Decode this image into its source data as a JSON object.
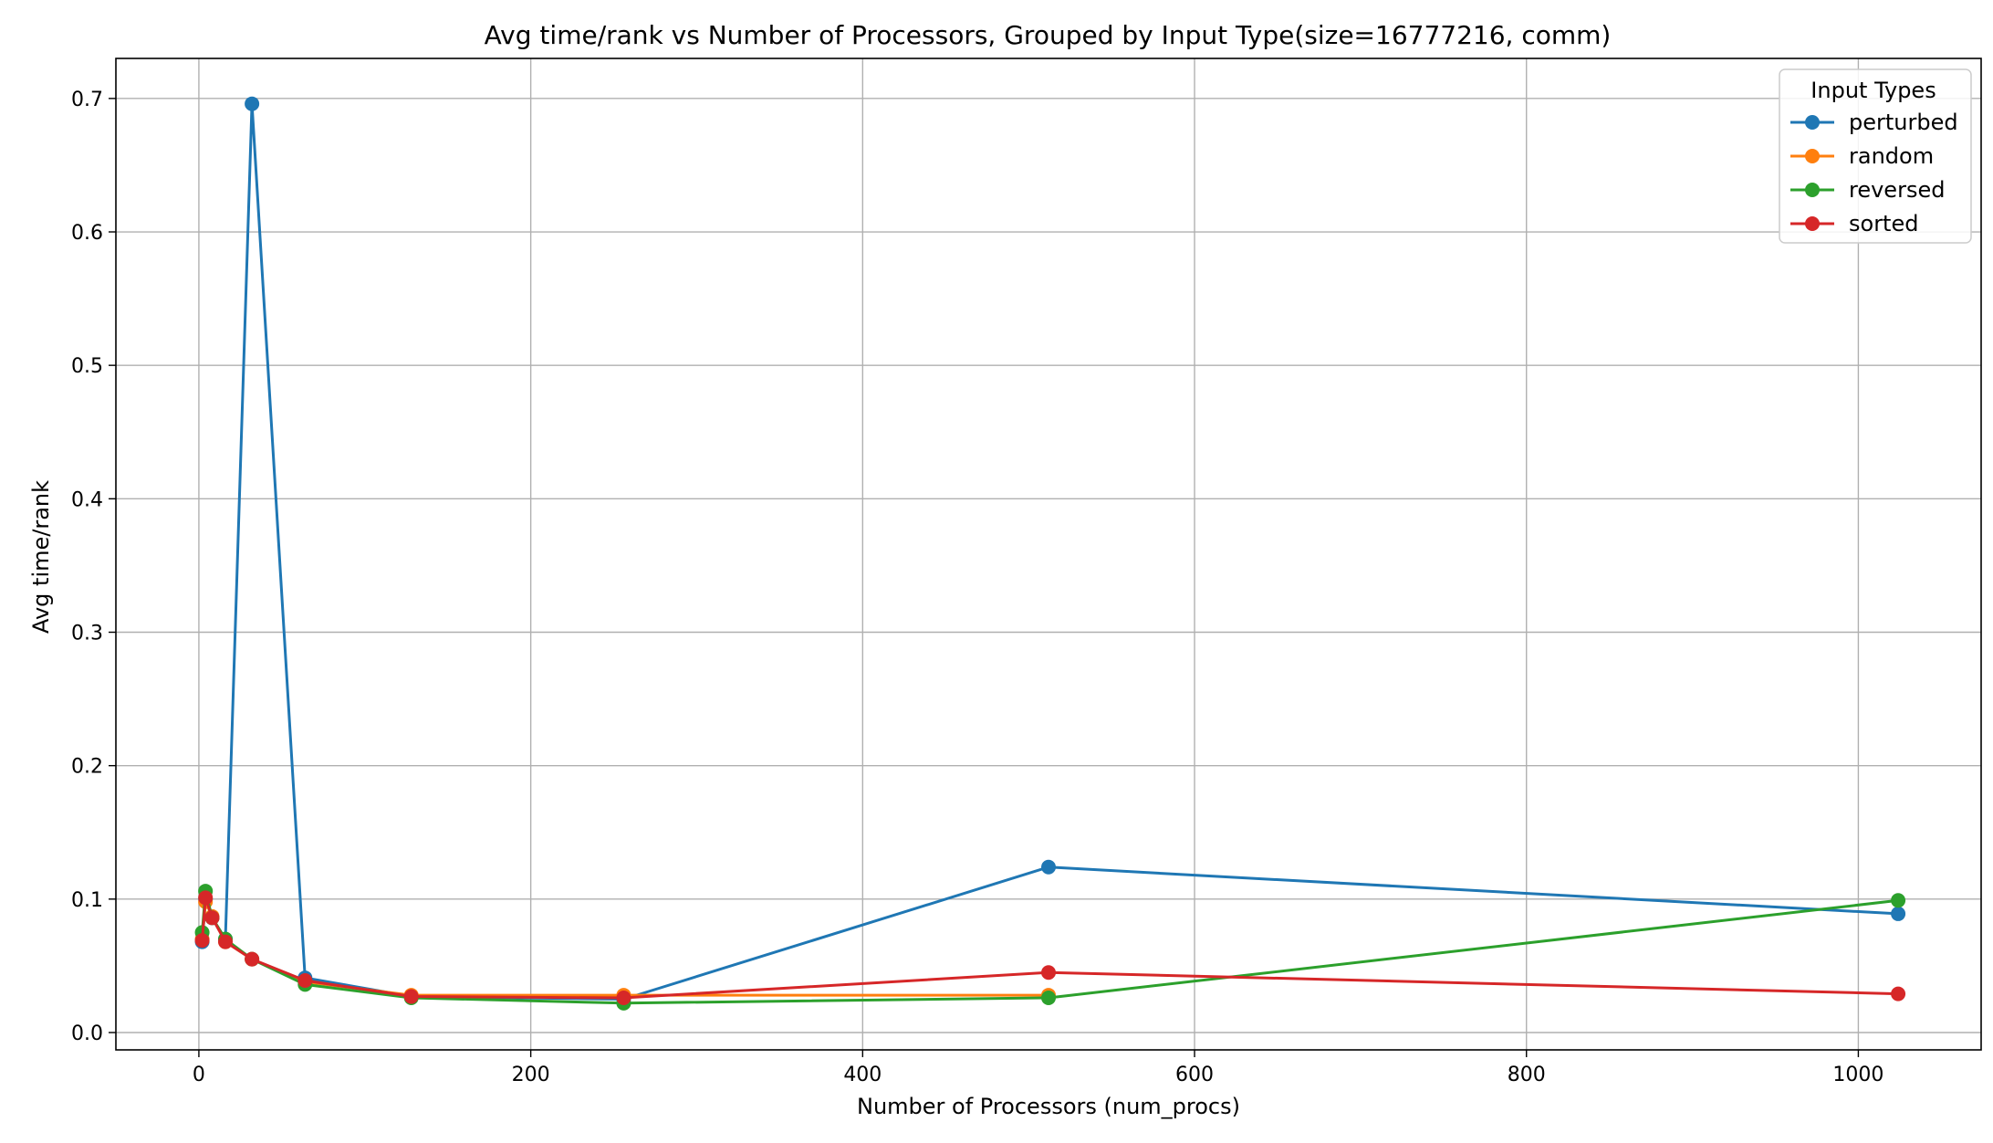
{
  "chart_data": {
    "type": "line",
    "title": "Avg time/rank vs Number of Processors, Grouped by Input Type(size=16777216, comm)",
    "xlabel": "Number of Processors (num_procs)",
    "ylabel": "Avg time/rank",
    "xlim": [
      -50,
      1074
    ],
    "ylim": [
      -0.013,
      0.73
    ],
    "xticks": [
      0,
      200,
      400,
      600,
      800,
      1000
    ],
    "yticks": [
      0.0,
      0.1,
      0.2,
      0.3,
      0.4,
      0.5,
      0.6,
      0.7
    ],
    "grid": true,
    "legend": {
      "title": "Input Types",
      "placement": "top-right"
    },
    "series": [
      {
        "name": "perturbed",
        "color": "#1f77b4",
        "points": [
          [
            2,
            0.068
          ],
          [
            4,
            0.1
          ],
          [
            8,
            0.086
          ],
          [
            16,
            0.07
          ],
          [
            32,
            0.696
          ],
          [
            64,
            0.041
          ],
          [
            128,
            0.027
          ],
          [
            256,
            0.025
          ],
          [
            512,
            0.124
          ],
          [
            1024,
            0.089
          ]
        ]
      },
      {
        "name": "random",
        "color": "#ff7f0e",
        "points": [
          [
            2,
            0.07
          ],
          [
            4,
            0.098
          ],
          [
            8,
            0.087
          ],
          [
            16,
            0.068
          ],
          [
            32,
            0.055
          ],
          [
            64,
            0.038
          ],
          [
            128,
            0.028
          ],
          [
            256,
            0.028
          ],
          [
            512,
            0.028
          ]
        ]
      },
      {
        "name": "reversed",
        "color": "#2ca02c",
        "points": [
          [
            2,
            0.075
          ],
          [
            4,
            0.106
          ],
          [
            8,
            0.086
          ],
          [
            16,
            0.07
          ],
          [
            32,
            0.055
          ],
          [
            64,
            0.036
          ],
          [
            128,
            0.026
          ],
          [
            256,
            0.022
          ],
          [
            512,
            0.026
          ],
          [
            1024,
            0.099
          ]
        ]
      },
      {
        "name": "sorted",
        "color": "#d62728",
        "points": [
          [
            2,
            0.069
          ],
          [
            4,
            0.101
          ],
          [
            8,
            0.086
          ],
          [
            16,
            0.068
          ],
          [
            32,
            0.055
          ],
          [
            64,
            0.039
          ],
          [
            128,
            0.027
          ],
          [
            256,
            0.026
          ],
          [
            512,
            0.045
          ],
          [
            1024,
            0.029
          ]
        ]
      }
    ]
  }
}
